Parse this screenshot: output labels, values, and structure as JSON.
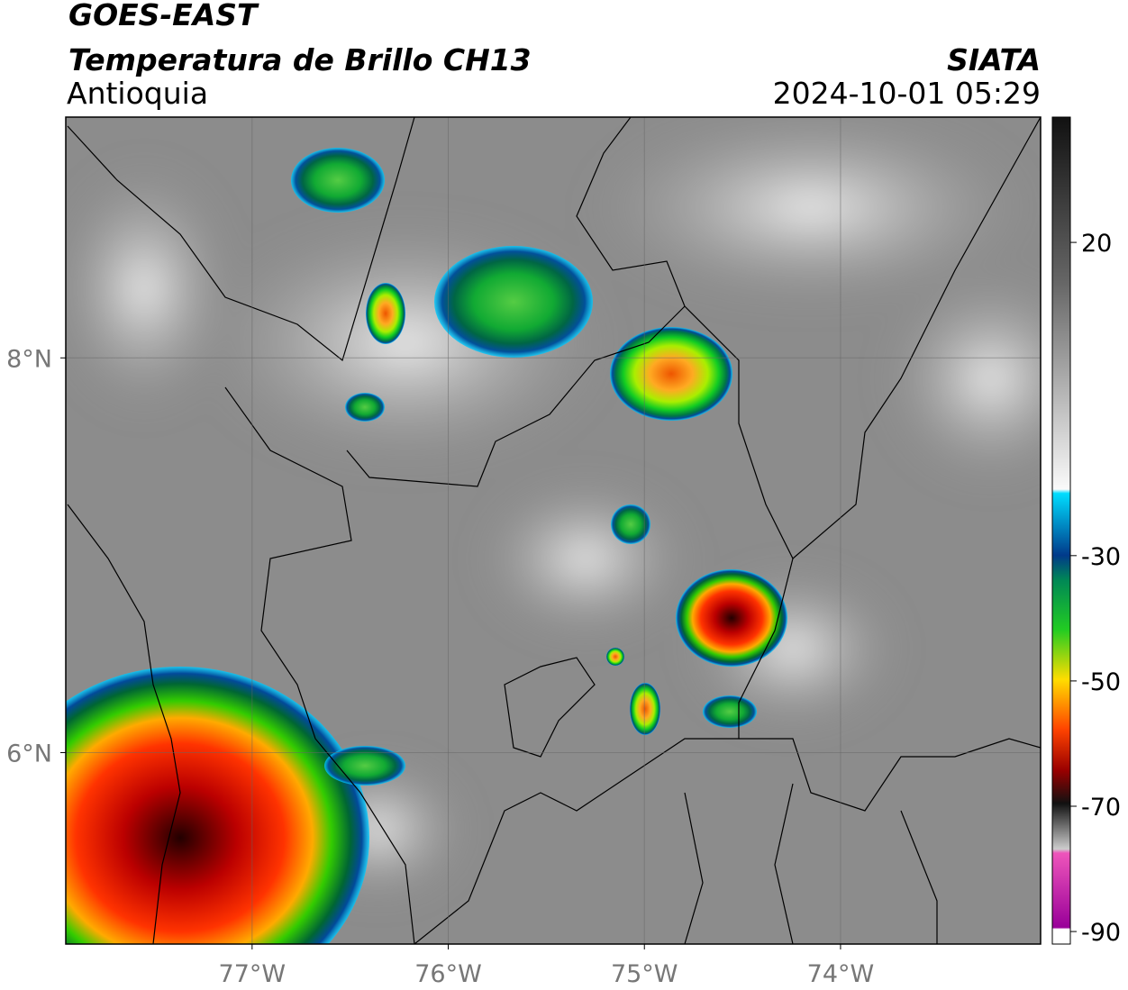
{
  "header": {
    "satellite": "GOES-EAST",
    "product": "Temperatura de Brillo CH13",
    "region": "Antioquia",
    "agency": "SIATA",
    "timestamp": "2024-10-01 05:29"
  },
  "map": {
    "lonlim": [
      -77.95,
      -72.98
    ],
    "latlim": [
      5.03,
      9.22
    ],
    "lonticks": [
      {
        "value": -77,
        "label": "77°W"
      },
      {
        "value": -76,
        "label": "76°W"
      },
      {
        "value": -75,
        "label": "75°W"
      },
      {
        "value": -74,
        "label": "74°W"
      }
    ],
    "latticks": [
      {
        "value": 8,
        "label": "8°N"
      },
      {
        "value": 6,
        "label": "6°N"
      }
    ],
    "grid": true
  },
  "colorbar": {
    "lim": [
      -92,
      40
    ],
    "ticks": [
      20,
      -30,
      -50,
      -70,
      -90
    ]
  }
}
